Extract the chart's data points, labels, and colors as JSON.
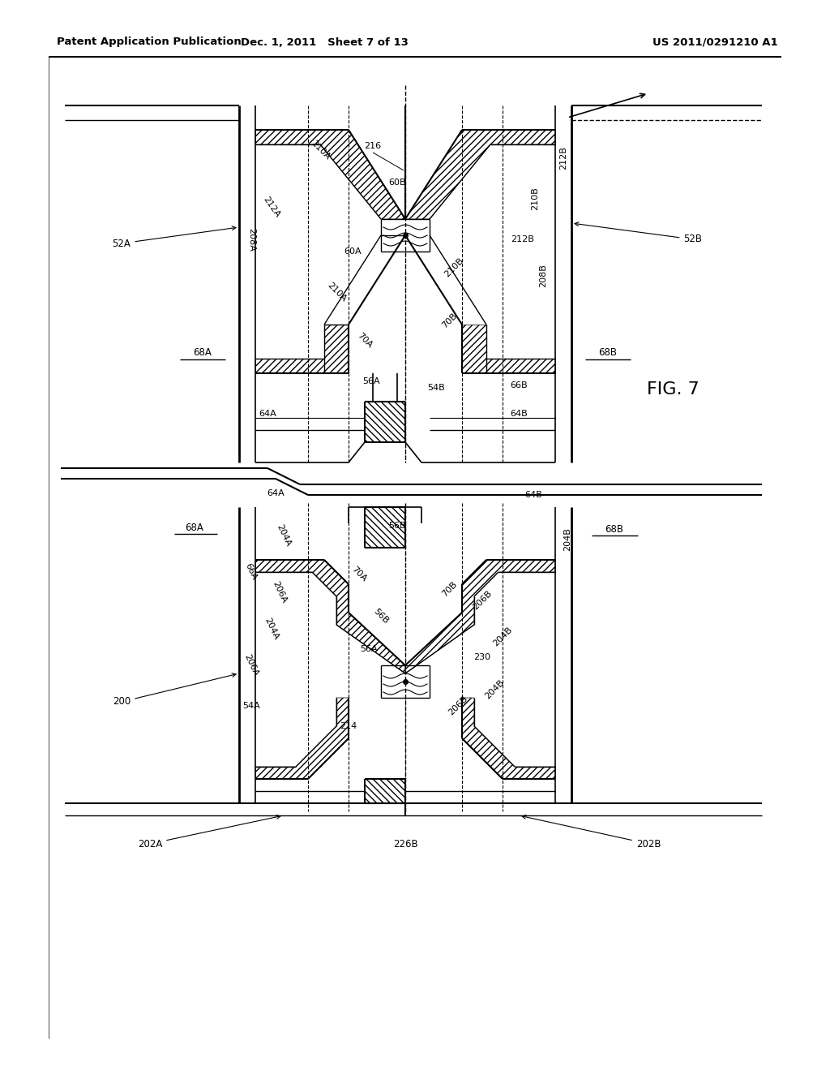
{
  "header_left": "Patent Application Publication",
  "header_mid": "Dec. 1, 2011   Sheet 7 of 13",
  "header_right": "US 2011/0291210 A1",
  "fig_label": "FIG. 7",
  "bg_color": "#ffffff",
  "line_color": "#000000"
}
